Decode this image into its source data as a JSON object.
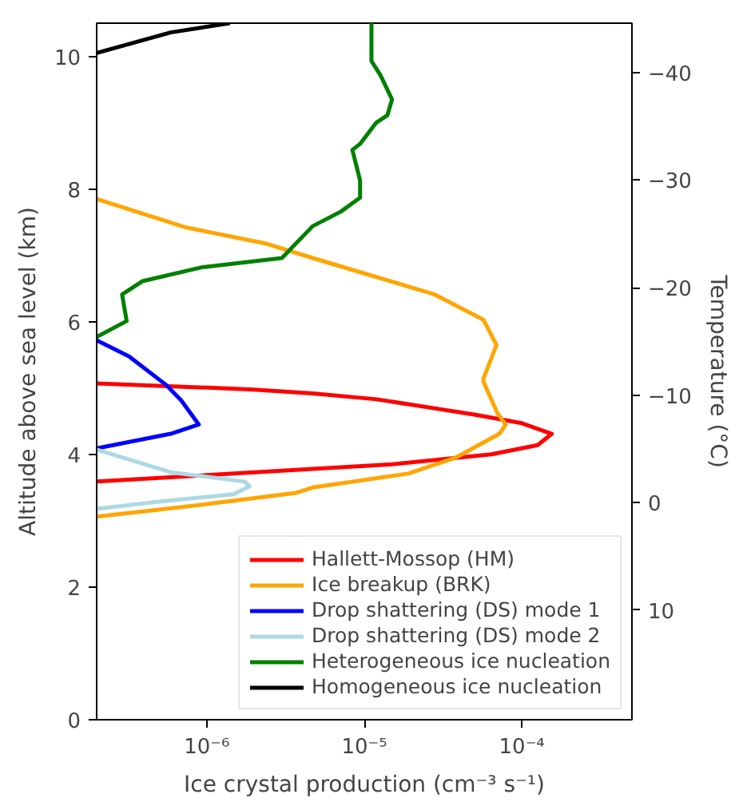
{
  "chart_data": {
    "type": "line",
    "xlabel": "Ice crystal production (cm⁻³ s⁻¹)",
    "ylabel": "Altitude above sea level (km)",
    "y2label": "Temperature (°C)",
    "log": "x",
    "grid": false,
    "legend": "bottom right",
    "marker": "none",
    "line_style": "solid",
    "xlim": [
      2e-07,
      0.0005
    ],
    "ylim": [
      0,
      10.5
    ],
    "y2lim": [
      20.2,
      -44.6
    ],
    "xticks": [
      {
        "value": 1e-06,
        "label": "10⁻⁶"
      },
      {
        "value": 1e-05,
        "label": "10⁻⁵"
      },
      {
        "value": 0.0001,
        "label": "10⁻⁴"
      }
    ],
    "yticks": [
      0,
      2,
      4,
      6,
      8,
      10
    ],
    "y2ticks": [
      {
        "value": -40,
        "label": "−40"
      },
      {
        "value": -30,
        "label": "−30"
      },
      {
        "value": -20,
        "label": "−20"
      },
      {
        "value": -10,
        "label": "−10"
      },
      0,
      10
    ],
    "series": [
      {
        "name": "Hallett-Mossop (HM)",
        "color": "#ff0000",
        "x": [
          2e-07,
          4.7e-06,
          1.5e-05,
          6.4e-05,
          0.000126,
          0.000155,
          0.0001,
          5e-05,
          1.2e-05,
          4.7e-06,
          1.9e-06,
          2e-07
        ],
        "values": [
          3.59,
          3.78,
          3.85,
          4.0,
          4.14,
          4.31,
          4.47,
          4.6,
          4.83,
          4.92,
          4.98,
          5.07
        ]
      },
      {
        "name": "Ice breakup (BRK)",
        "color": "#ffa500",
        "x": [
          2e-07,
          1e-06,
          3.7e-06,
          4.7e-06,
          1.9e-05,
          3.8e-05,
          7.2e-05,
          7.9e-05,
          7e-05,
          5.7e-05,
          5.7e-05,
          6.9e-05,
          5.7e-05,
          2.8e-05,
          4.7e-06,
          2.35e-06,
          7.4e-07,
          2e-07
        ],
        "values": [
          3.06,
          3.25,
          3.42,
          3.5,
          3.71,
          3.95,
          4.31,
          4.45,
          4.62,
          5.1,
          5.14,
          5.65,
          6.03,
          6.41,
          6.96,
          7.18,
          7.42,
          7.85
        ]
      },
      {
        "name": "Drop shattering (DS) mode 1",
        "color": "#0000ff",
        "x": [
          2e-07,
          5.9e-07,
          8.9e-07,
          6.9e-07,
          5.5e-07,
          3.2e-07,
          2e-07
        ],
        "values": [
          4.09,
          4.31,
          4.45,
          4.81,
          5.05,
          5.48,
          5.72
        ]
      },
      {
        "name": "Drop shattering (DS) mode 2",
        "color": "#add8e6",
        "x": [
          2e-07,
          4.7e-07,
          1.48e-06,
          1.87e-06,
          1.74e-06,
          5.9e-07,
          2e-07
        ],
        "values": [
          3.18,
          3.28,
          3.4,
          3.52,
          3.59,
          3.73,
          4.07
        ]
      },
      {
        "name": "Heterogeneous ice nucleation",
        "color": "#008000",
        "x": [
          2e-07,
          3.1e-07,
          2.9e-07,
          3.9e-07,
          9.3e-07,
          3e-06,
          4.7e-06,
          7.1e-06,
          9.4e-06,
          9.4e-06,
          8.4e-06,
          9.4e-06,
          1.19e-05,
          1.4e-05,
          1.5e-05,
          1.27e-05,
          1.11e-05,
          1.11e-05,
          1.11e-05
        ],
        "values": [
          5.77,
          6.01,
          6.41,
          6.61,
          6.82,
          6.96,
          7.44,
          7.66,
          7.87,
          8.13,
          8.59,
          8.68,
          9.0,
          9.11,
          9.35,
          9.71,
          9.93,
          10.29,
          10.5
        ]
      },
      {
        "name": "Homogeneous ice nucleation",
        "color": "#000000",
        "x": [
          2e-07,
          5.9e-07,
          1.4e-06
        ],
        "values": [
          10.05,
          10.36,
          10.5
        ]
      }
    ]
  }
}
